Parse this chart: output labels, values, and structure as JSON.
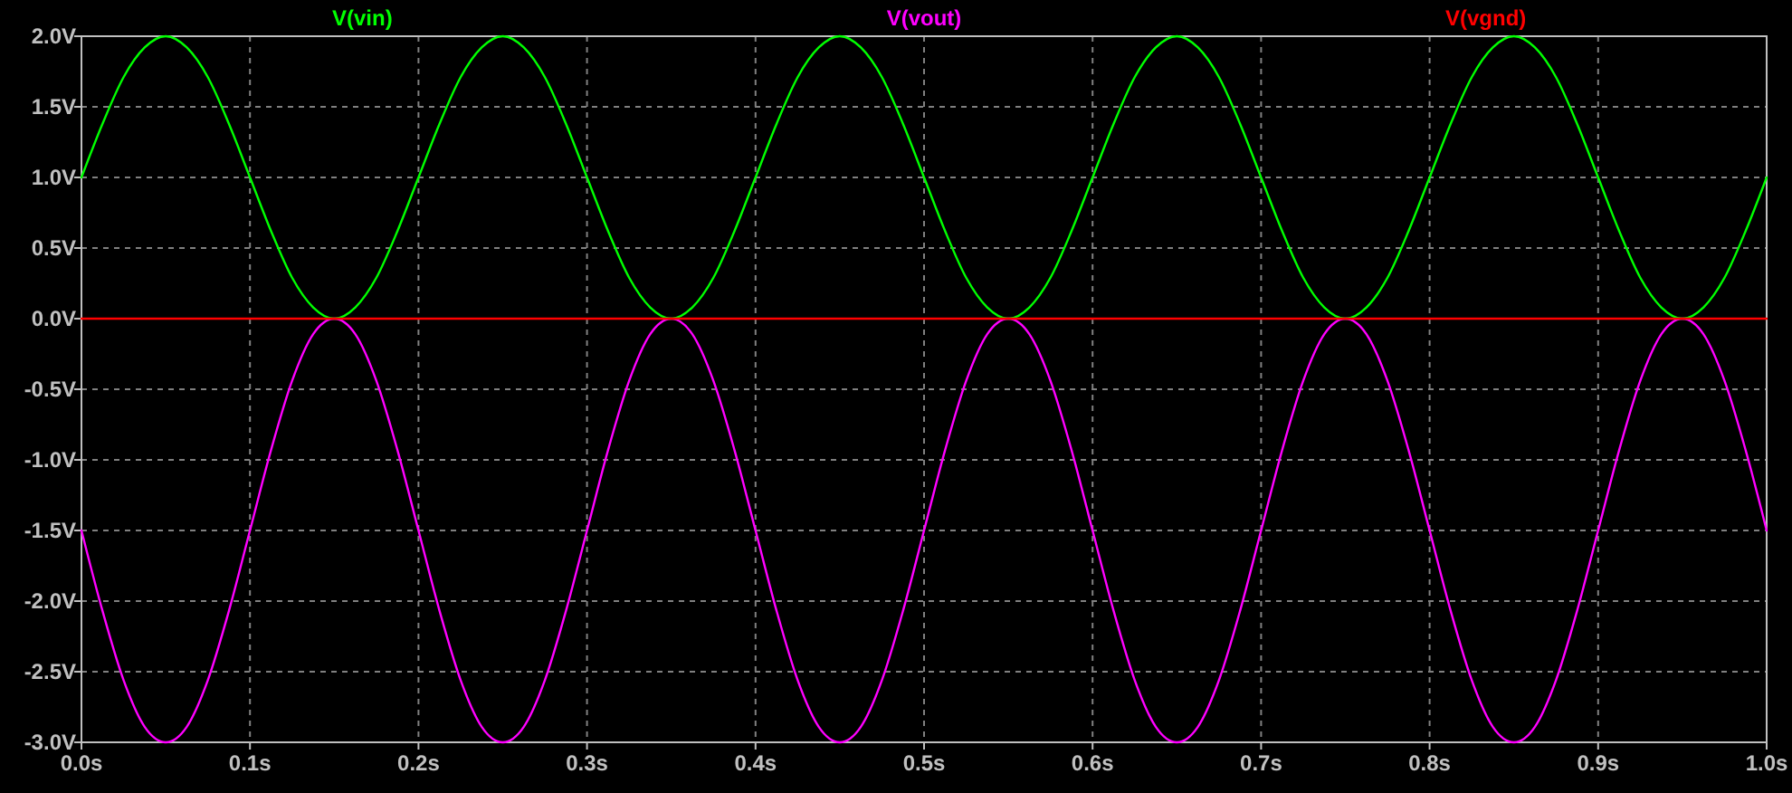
{
  "chart_data": {
    "type": "line",
    "legend": "top",
    "grid": true,
    "line_style": "solid",
    "x": [
      0,
      0.0125,
      0.025,
      0.0375,
      0.05,
      0.0625,
      0.075,
      0.0875,
      0.1,
      0.1125,
      0.125,
      0.1375,
      0.15,
      0.1625,
      0.175,
      0.1875,
      0.2,
      0.2125,
      0.225,
      0.2375,
      0.25,
      0.2625,
      0.275,
      0.2875,
      0.3,
      0.3125,
      0.325,
      0.3375,
      0.35,
      0.3625,
      0.375,
      0.3875,
      0.4,
      0.4125,
      0.425,
      0.4375,
      0.45,
      0.4625,
      0.475,
      0.4875,
      0.5,
      0.5125,
      0.525,
      0.5375,
      0.55,
      0.5625,
      0.575,
      0.5875,
      0.6,
      0.6125,
      0.625,
      0.6375,
      0.65,
      0.6625,
      0.675,
      0.6875,
      0.7,
      0.7125,
      0.725,
      0.7375,
      0.75,
      0.7625,
      0.775,
      0.7875,
      0.8,
      0.8125,
      0.825,
      0.8375,
      0.85,
      0.8625,
      0.875,
      0.8875,
      0.9,
      0.9125,
      0.925,
      0.9375,
      0.95,
      0.9625,
      0.975,
      0.9875,
      1
    ],
    "series": [
      {
        "name": "V(vin)",
        "color": "#00ff00",
        "values": [
          1,
          1.38,
          1.71,
          1.92,
          2,
          1.92,
          1.71,
          1.38,
          1,
          0.62,
          0.29,
          0.08,
          0,
          0.08,
          0.29,
          0.62,
          1,
          1.38,
          1.71,
          1.92,
          2,
          1.92,
          1.71,
          1.38,
          1,
          0.62,
          0.29,
          0.08,
          0,
          0.08,
          0.29,
          0.62,
          1,
          1.38,
          1.71,
          1.92,
          2,
          1.92,
          1.71,
          1.38,
          1,
          0.62,
          0.29,
          0.08,
          0,
          0.08,
          0.29,
          0.62,
          1,
          1.38,
          1.71,
          1.92,
          2,
          1.92,
          1.71,
          1.38,
          1,
          0.62,
          0.29,
          0.08,
          0,
          0.08,
          0.29,
          0.62,
          1,
          1.38,
          1.71,
          1.92,
          2,
          1.92,
          1.71,
          1.38,
          1,
          0.62,
          0.29,
          0.08,
          0,
          0.08,
          0.29,
          0.62,
          1
        ]
      },
      {
        "name": "V(vout)",
        "color": "#ff00ff",
        "values": [
          -1.5,
          -2.07,
          -2.56,
          -2.89,
          -3,
          -2.89,
          -2.56,
          -2.07,
          -1.5,
          -0.93,
          -0.44,
          -0.11,
          0,
          -0.11,
          -0.44,
          -0.93,
          -1.5,
          -2.07,
          -2.56,
          -2.89,
          -3,
          -2.89,
          -2.56,
          -2.07,
          -1.5,
          -0.93,
          -0.44,
          -0.11,
          0,
          -0.11,
          -0.44,
          -0.93,
          -1.5,
          -2.07,
          -2.56,
          -2.89,
          -3,
          -2.89,
          -2.56,
          -2.07,
          -1.5,
          -0.93,
          -0.44,
          -0.11,
          0,
          -0.11,
          -0.44,
          -0.93,
          -1.5,
          -2.07,
          -2.56,
          -2.89,
          -3,
          -2.89,
          -2.56,
          -2.07,
          -1.5,
          -0.93,
          -0.44,
          -0.11,
          0,
          -0.11,
          -0.44,
          -0.93,
          -1.5,
          -2.07,
          -2.56,
          -2.89,
          -3,
          -2.89,
          -2.56,
          -2.07,
          -1.5,
          -0.93,
          -0.44,
          -0.11,
          0,
          -0.11,
          -0.44,
          -0.93,
          -1.5
        ]
      },
      {
        "name": "V(vgnd)",
        "color": "#ff0000",
        "x": [
          0,
          1
        ],
        "values": [
          0,
          0
        ]
      }
    ],
    "xlim": [
      0,
      1
    ],
    "ylim": [
      -3,
      2
    ],
    "xticks": [
      {
        "value": 0,
        "label": "0.0s"
      },
      {
        "value": 0.1,
        "label": "0.1s"
      },
      {
        "value": 0.2,
        "label": "0.2s"
      },
      {
        "value": 0.3,
        "label": "0.3s"
      },
      {
        "value": 0.4,
        "label": "0.4s"
      },
      {
        "value": 0.5,
        "label": "0.5s"
      },
      {
        "value": 0.6,
        "label": "0.6s"
      },
      {
        "value": 0.7,
        "label": "0.7s"
      },
      {
        "value": 0.8,
        "label": "0.8s"
      },
      {
        "value": 0.9,
        "label": "0.9s"
      },
      {
        "value": 1,
        "label": "1.0s"
      }
    ],
    "yticks": [
      {
        "value": 2,
        "label": "2.0V"
      },
      {
        "value": 1.5,
        "label": "1.5V"
      },
      {
        "value": 1,
        "label": "1.0V"
      },
      {
        "value": 0.5,
        "label": "0.5V"
      },
      {
        "value": 0,
        "label": "0.0V"
      },
      {
        "value": -0.5,
        "label": "-0.5V"
      },
      {
        "value": -1,
        "label": "-1.0V"
      },
      {
        "value": -1.5,
        "label": "-1.5V"
      },
      {
        "value": -2,
        "label": "-2.0V"
      },
      {
        "value": -2.5,
        "label": "-2.5V"
      },
      {
        "value": -3,
        "label": "-3.0V"
      }
    ]
  }
}
